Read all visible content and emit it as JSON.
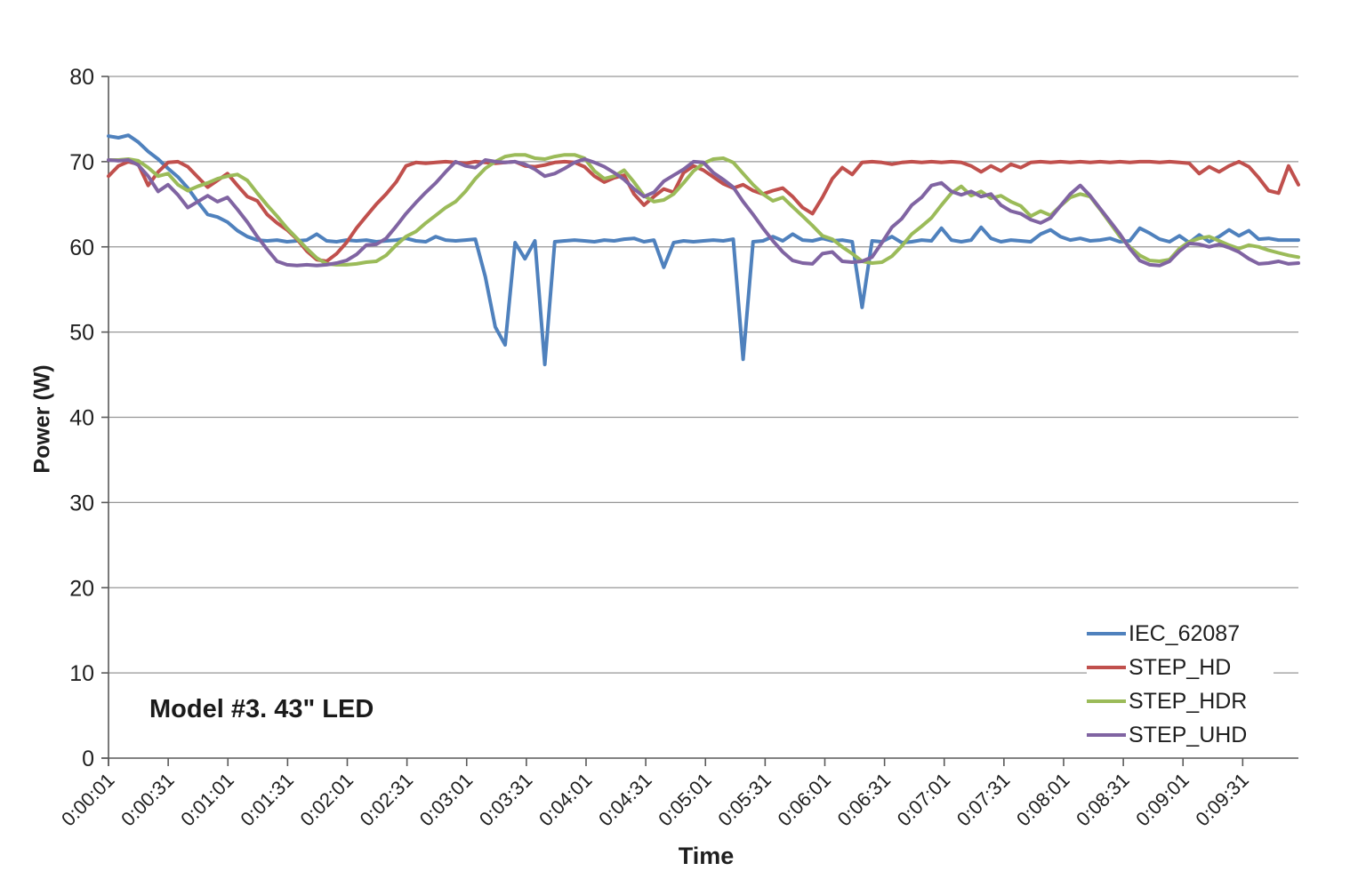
{
  "figure": {
    "model_label": "Model #3. 43\" LED"
  },
  "style": {
    "background": "#FFFFFF",
    "grid_color": "#969696",
    "axis_color": "#595959",
    "text_color": "#1f1f1f",
    "line_width": 4
  },
  "chart_data": {
    "type": "line",
    "title": "",
    "xlabel": "Time",
    "ylabel": "Power (W)",
    "ylim": [
      0,
      80
    ],
    "y_ticks": [
      0,
      10,
      20,
      30,
      40,
      50,
      60,
      70,
      80
    ],
    "grid": "horizontal-only",
    "legend_position": "lower-right",
    "x_domain_seconds": [
      0,
      598
    ],
    "sample_interval_seconds": 5,
    "x_tick_interval_seconds": 30,
    "x_tick_labels": [
      "0:00:01",
      "0:00:31",
      "0:01:01",
      "0:01:31",
      "0:02:01",
      "0:02:31",
      "0:03:01",
      "0:03:31",
      "0:04:01",
      "0:04:31",
      "0:05:01",
      "0:05:31",
      "0:06:01",
      "0:06:31",
      "0:07:01",
      "0:07:31",
      "0:08:01",
      "0:08:31",
      "0:09:01",
      "0:09:31"
    ],
    "series": [
      {
        "name": "IEC_62087",
        "color": "#4F81BD",
        "values": [
          73.0,
          72.8,
          73.1,
          72.3,
          71.2,
          70.3,
          69.2,
          68.2,
          66.9,
          65.3,
          63.8,
          63.5,
          62.9,
          61.9,
          61.2,
          60.8,
          60.7,
          60.8,
          60.6,
          60.7,
          60.8,
          61.5,
          60.7,
          60.6,
          60.8,
          60.7,
          60.8,
          60.6,
          60.7,
          60.8,
          61.0,
          60.7,
          60.6,
          61.2,
          60.8,
          60.7,
          60.8,
          60.9,
          56.5,
          50.6,
          48.5,
          60.5,
          58.6,
          60.7,
          46.2,
          60.6,
          60.7,
          60.8,
          60.7,
          60.6,
          60.8,
          60.7,
          60.9,
          61.0,
          60.6,
          60.8,
          57.6,
          60.5,
          60.7,
          60.6,
          60.7,
          60.8,
          60.7,
          60.9,
          46.8,
          60.6,
          60.7,
          61.2,
          60.7,
          61.5,
          60.8,
          60.7,
          61.0,
          60.7,
          60.8,
          60.6,
          52.9,
          60.7,
          60.6,
          61.2,
          60.5,
          60.6,
          60.8,
          60.7,
          62.2,
          60.8,
          60.6,
          60.8,
          62.3,
          61.0,
          60.6,
          60.8,
          60.7,
          60.6,
          61.5,
          62.0,
          61.2,
          60.8,
          61.0,
          60.7,
          60.8,
          61.0,
          60.6,
          60.7,
          62.2,
          61.6,
          60.9,
          60.6,
          61.3,
          60.5,
          61.4,
          60.6,
          61.2,
          62.0,
          61.3,
          61.9,
          60.9,
          61.0,
          60.8,
          60.8,
          60.8
        ]
      },
      {
        "name": "STEP_HD",
        "color": "#C0504D",
        "values": [
          68.3,
          69.5,
          70.0,
          69.7,
          67.2,
          68.8,
          69.9,
          70.0,
          69.4,
          68.2,
          67.0,
          67.8,
          68.6,
          67.2,
          65.9,
          65.4,
          63.8,
          62.8,
          62.0,
          60.9,
          59.5,
          58.5,
          58.3,
          59.2,
          60.5,
          62.2,
          63.6,
          65.0,
          66.2,
          67.6,
          69.5,
          69.9,
          69.8,
          69.9,
          70.0,
          69.9,
          69.8,
          70.0,
          69.9,
          69.8,
          69.9,
          70.0,
          69.5,
          69.4,
          69.6,
          69.9,
          70.0,
          69.9,
          69.4,
          68.3,
          67.6,
          68.1,
          68.4,
          66.2,
          64.9,
          65.9,
          66.8,
          66.4,
          68.7,
          69.5,
          69.0,
          68.2,
          67.4,
          66.9,
          67.3,
          66.6,
          66.2,
          66.6,
          66.9,
          65.9,
          64.6,
          63.9,
          65.8,
          68.0,
          69.3,
          68.5,
          69.9,
          70.0,
          69.9,
          69.7,
          69.9,
          70.0,
          69.9,
          70.0,
          69.9,
          70.0,
          69.9,
          69.5,
          68.8,
          69.5,
          68.9,
          69.7,
          69.3,
          69.9,
          70.0,
          69.9,
          70.0,
          69.9,
          70.0,
          69.9,
          70.0,
          69.9,
          70.0,
          69.9,
          70.0,
          70.0,
          69.9,
          70.0,
          69.9,
          69.8,
          68.6,
          69.4,
          68.8,
          69.5,
          70.0,
          69.4,
          68.1,
          66.6,
          66.3,
          69.5,
          67.3
        ]
      },
      {
        "name": "STEP_HDR",
        "color": "#9BBB59",
        "values": [
          70.2,
          70.2,
          70.3,
          70.1,
          69.3,
          68.3,
          68.6,
          67.3,
          66.6,
          67.1,
          67.5,
          68.0,
          68.3,
          68.5,
          67.8,
          66.3,
          64.9,
          63.6,
          62.2,
          61.0,
          59.8,
          58.7,
          58.0,
          57.9,
          57.9,
          58.0,
          58.2,
          58.3,
          59.0,
          60.2,
          61.2,
          61.8,
          62.8,
          63.7,
          64.6,
          65.3,
          66.5,
          68.0,
          69.2,
          70.0,
          70.6,
          70.8,
          70.8,
          70.4,
          70.3,
          70.6,
          70.8,
          70.8,
          70.4,
          68.9,
          68.0,
          68.3,
          69.0,
          67.6,
          66.0,
          65.3,
          65.5,
          66.2,
          67.5,
          68.9,
          69.8,
          70.3,
          70.4,
          69.9,
          68.6,
          67.3,
          66.2,
          65.4,
          65.8,
          64.7,
          63.6,
          62.5,
          61.3,
          60.9,
          60.0,
          59.2,
          58.3,
          58.1,
          58.2,
          58.9,
          60.1,
          61.5,
          62.4,
          63.4,
          64.9,
          66.3,
          67.1,
          66.0,
          66.5,
          65.7,
          66.0,
          65.3,
          64.8,
          63.6,
          64.2,
          63.7,
          64.8,
          65.8,
          66.2,
          65.9,
          64.4,
          62.8,
          61.2,
          60.0,
          59.0,
          58.4,
          58.3,
          58.5,
          59.8,
          60.6,
          61.0,
          61.2,
          60.7,
          60.2,
          59.8,
          60.2,
          60.0,
          59.6,
          59.3,
          59.0,
          58.8
        ]
      },
      {
        "name": "STEP_UHD",
        "color": "#8064A2",
        "values": [
          70.2,
          70.1,
          70.2,
          69.6,
          68.3,
          66.5,
          67.3,
          66.1,
          64.6,
          65.3,
          66.0,
          65.3,
          65.8,
          64.4,
          62.9,
          61.2,
          59.7,
          58.3,
          57.9,
          57.8,
          57.9,
          57.8,
          57.9,
          58.1,
          58.4,
          59.1,
          60.2,
          60.3,
          61.0,
          62.4,
          63.9,
          65.2,
          66.4,
          67.5,
          68.8,
          70.0,
          69.5,
          69.3,
          70.2,
          70.0,
          69.9,
          70.0,
          69.7,
          69.1,
          68.3,
          68.6,
          69.2,
          69.9,
          70.3,
          69.9,
          69.4,
          68.7,
          67.9,
          66.8,
          65.9,
          66.4,
          67.7,
          68.4,
          69.1,
          70.0,
          69.9,
          68.7,
          67.9,
          67.0,
          65.3,
          63.8,
          62.2,
          60.7,
          59.4,
          58.4,
          58.1,
          58.0,
          59.2,
          59.4,
          58.3,
          58.2,
          58.3,
          58.8,
          60.5,
          62.3,
          63.3,
          64.9,
          65.8,
          67.2,
          67.5,
          66.5,
          66.1,
          66.5,
          65.9,
          66.2,
          64.9,
          64.2,
          63.9,
          63.2,
          62.8,
          63.4,
          64.8,
          66.2,
          67.2,
          66.0,
          64.5,
          63.0,
          61.5,
          59.8,
          58.4,
          57.9,
          57.8,
          58.3,
          59.5,
          60.4,
          60.3,
          60.0,
          60.3,
          59.9,
          59.4,
          58.6,
          58.0,
          58.1,
          58.3,
          58.0,
          58.1
        ]
      }
    ]
  }
}
